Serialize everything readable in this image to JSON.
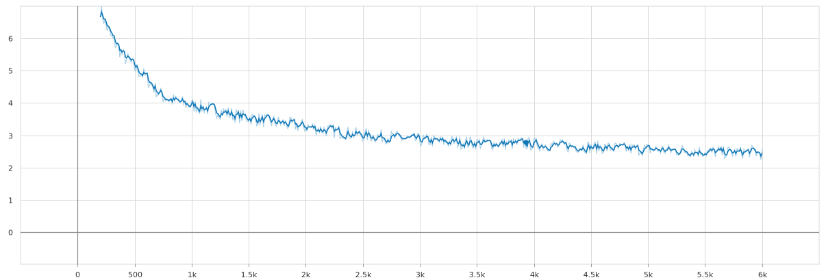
{
  "chart_data": {
    "type": "line",
    "title": "",
    "xlabel": "",
    "ylabel": "",
    "xlim": [
      -500,
      6500
    ],
    "ylim": [
      -1,
      7
    ],
    "grid": true,
    "x_ticks": [
      0,
      500,
      1000,
      1500,
      2000,
      2500,
      3000,
      3500,
      4000,
      4500,
      5000,
      5500,
      6000
    ],
    "x_tick_labels": [
      "0",
      "500",
      "1k",
      "1.5k",
      "2k",
      "2.5k",
      "3k",
      "3.5k",
      "4k",
      "4.5k",
      "5k",
      "5.5k",
      "6k"
    ],
    "y_ticks": [
      0,
      1,
      2,
      3,
      4,
      5,
      6
    ],
    "y_tick_labels": [
      "0",
      "1",
      "2",
      "3",
      "4",
      "5",
      "6"
    ],
    "colors": {
      "smoothed": "#0f77b8",
      "raw": "#a9cfe6",
      "grid": "#d9d9d9",
      "zero_axis": "#8a8a8a"
    },
    "series": [
      {
        "values_x": [
          200,
          250,
          300,
          350,
          400,
          450,
          500,
          550,
          600,
          650,
          700,
          750,
          800,
          900,
          1000,
          1100,
          1200,
          1300,
          1400,
          1500,
          1600,
          1700,
          1800,
          1900,
          2000,
          2100,
          2200,
          2300,
          2400,
          2500,
          2600,
          2700,
          2800,
          2900,
          3000,
          3100,
          3200,
          3300,
          3400,
          3500,
          3600,
          3700,
          3800,
          3900,
          4000,
          4100,
          4200,
          4300,
          4400,
          4500,
          4600,
          4700,
          4800,
          4900,
          5000,
          5100,
          5200,
          5300,
          5400,
          5500,
          5600,
          5700,
          5800,
          5900,
          6000
        ],
        "values_y": [
          6.9,
          6.4,
          6.0,
          5.75,
          5.45,
          5.3,
          5.1,
          4.95,
          4.8,
          4.55,
          4.35,
          4.2,
          4.12,
          4.0,
          3.93,
          3.86,
          3.78,
          3.7,
          3.6,
          3.55,
          3.48,
          3.42,
          3.37,
          3.32,
          3.27,
          3.2,
          3.15,
          3.1,
          3.05,
          3.01,
          2.97,
          2.95,
          2.92,
          2.88,
          2.85,
          2.82,
          2.8,
          2.79,
          2.77,
          2.76,
          2.75,
          2.74,
          2.73,
          2.75,
          2.72,
          2.7,
          2.68,
          2.66,
          2.65,
          2.63,
          2.62,
          2.6,
          2.58,
          2.57,
          2.56,
          2.55,
          2.53,
          2.52,
          2.5,
          2.49,
          2.48,
          2.47,
          2.46,
          2.5,
          2.42
        ]
      }
    ],
    "highlight_point": {
      "x": 3930,
      "y": 2.78
    }
  }
}
